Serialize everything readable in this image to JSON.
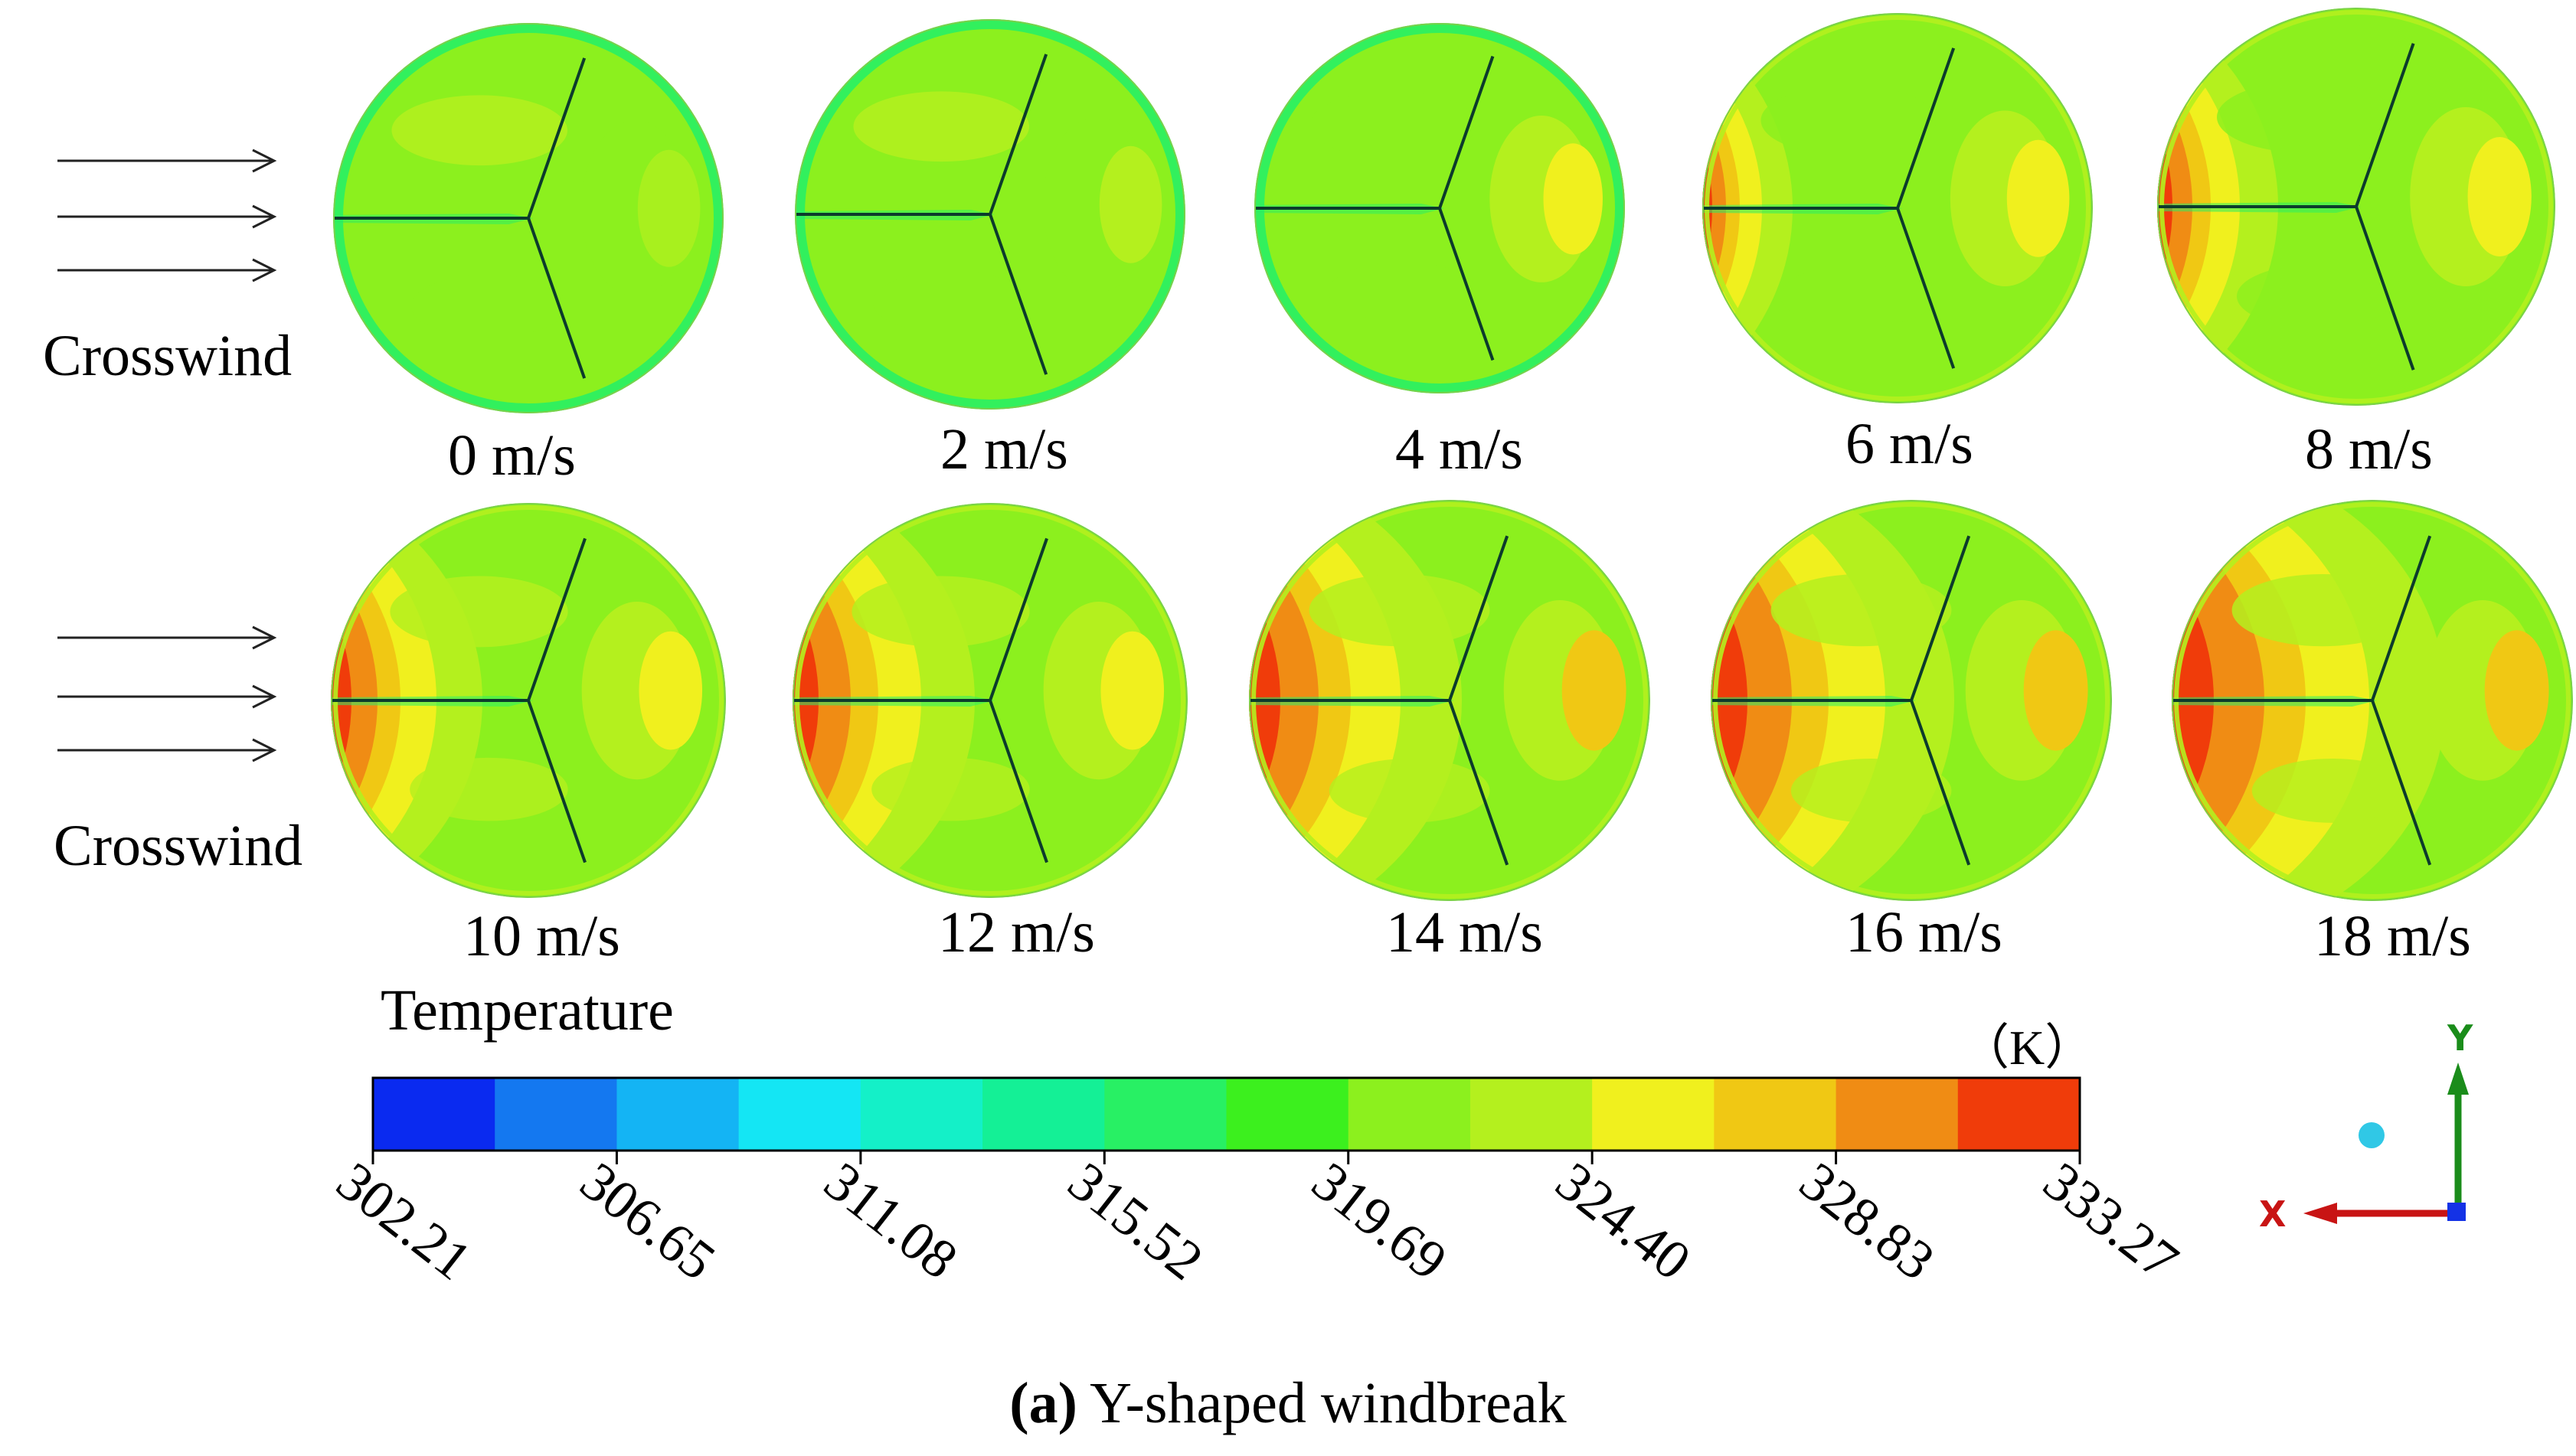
{
  "crosswind_label": "Crosswind",
  "speeds": [
    "0 m/s",
    "2 m/s",
    "4 m/s",
    "6 m/s",
    "8 m/s",
    "10 m/s",
    "12 m/s",
    "14 m/s",
    "16 m/s",
    "18 m/s"
  ],
  "legend": {
    "title": "Temperature",
    "unit": "（K）",
    "ticks": [
      "302.21",
      "306.65",
      "311.08",
      "315.52",
      "319.69",
      "324.40",
      "328.83",
      "333.27"
    ],
    "colors": [
      "#0a2af0",
      "#1478f0",
      "#14b4f4",
      "#14e6f4",
      "#14f0c8",
      "#14f096",
      "#28f064",
      "#3cf01e",
      "#8cf01e",
      "#b4f01e",
      "#f0f01e",
      "#f0c814",
      "#f08c14",
      "#f03c0a"
    ]
  },
  "axes_triad": {
    "y_label": "Y",
    "x_label": "X"
  },
  "caption": {
    "tag": "(a)",
    "text": " Y-shaped windbreak"
  },
  "colors": {
    "arrow": "#222222",
    "y_axis": "#1a8c1a",
    "x_axis": "#c81414",
    "origin": "#1432e6",
    "sphere": "#30c8e6"
  }
}
